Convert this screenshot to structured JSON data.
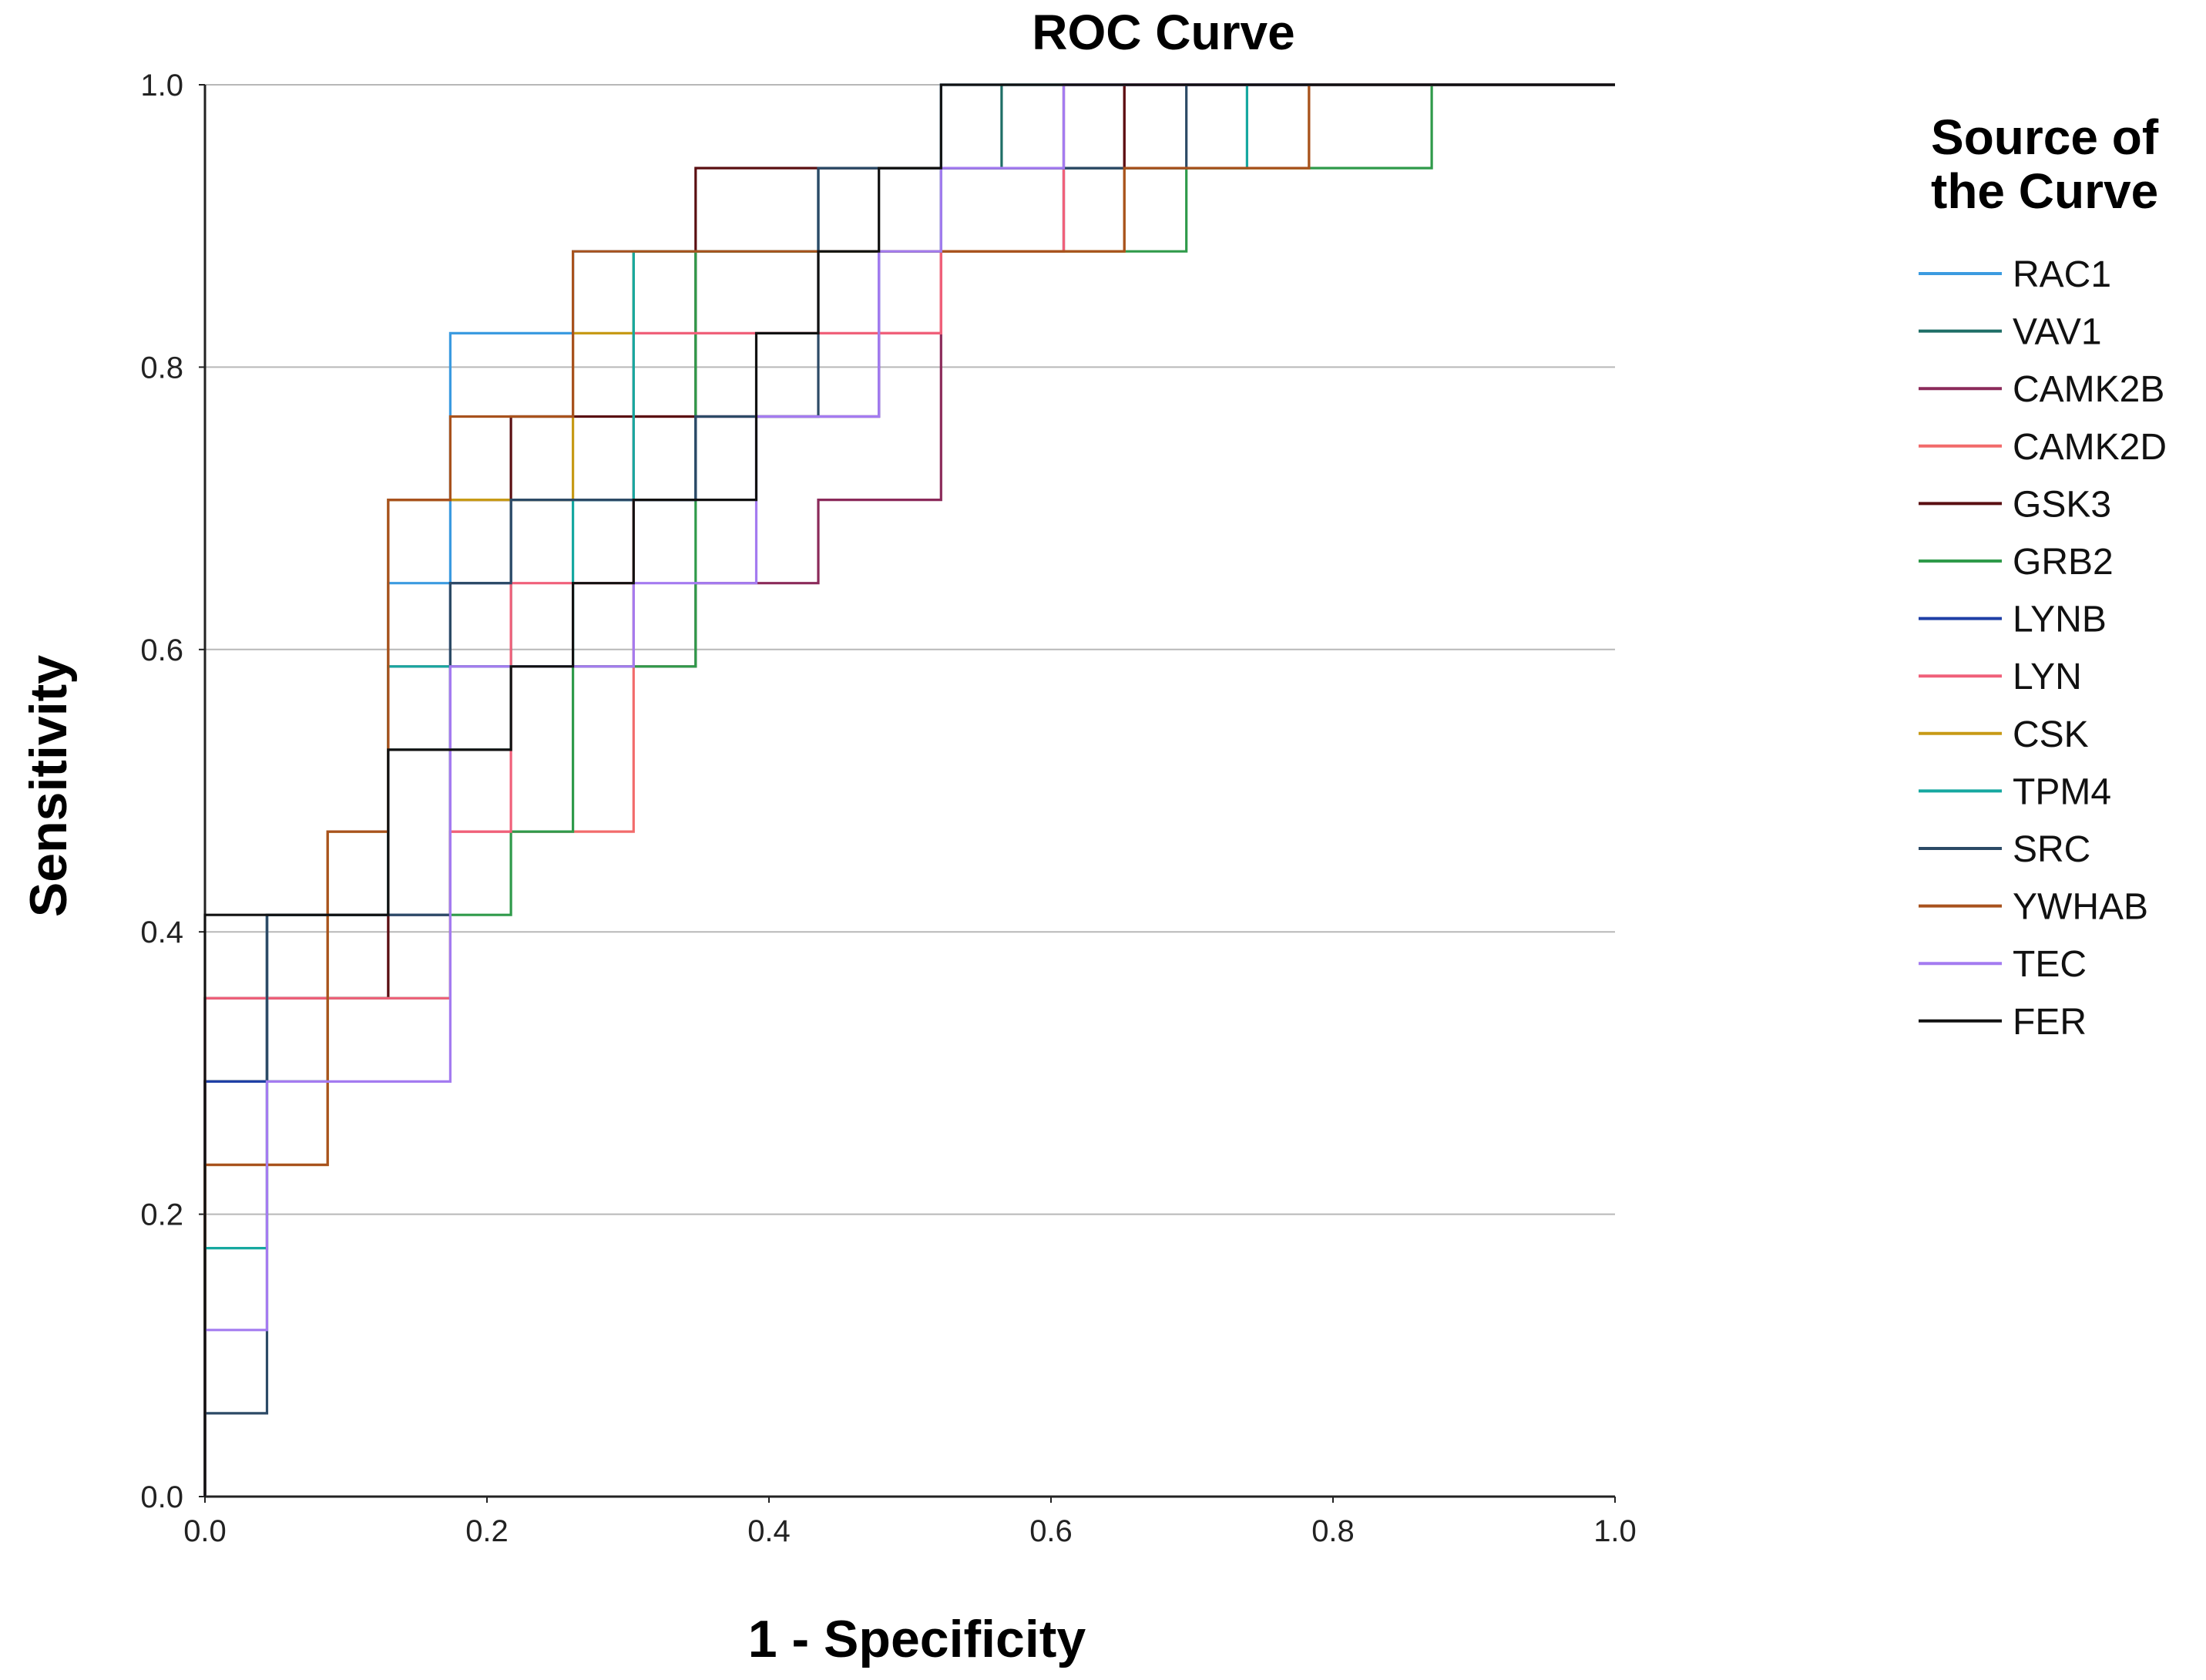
{
  "chart_data": {
    "type": "line",
    "title": "ROC Curve",
    "xlabel": "1 - Specificity",
    "ylabel": "Sensitivity",
    "xlim": [
      0,
      1
    ],
    "ylim": [
      0,
      1
    ],
    "xticks": [
      "0.0",
      "0.2",
      "0.4",
      "0.6",
      "0.8",
      "1.0"
    ],
    "yticks": [
      "0.0",
      "0.2",
      "0.4",
      "0.6",
      "0.8",
      "1.0"
    ],
    "grid": "horizontal",
    "legend": {
      "title_line1": "Source of",
      "title_line2": "the Curve",
      "position": "right"
    },
    "series": [
      {
        "name": "RAC1",
        "color": "#3b9be0",
        "x": [
          0,
          0,
          0.044,
          0.044,
          0.13,
          0.13,
          0.174,
          0.174,
          0.261,
          0.261,
          0.435,
          0.435,
          0.522,
          0.522,
          0.739,
          0.739,
          1.0
        ],
        "y": [
          0,
          0.294,
          0.294,
          0.412,
          0.412,
          0.647,
          0.647,
          0.824,
          0.824,
          0.882,
          0.882,
          0.941,
          0.941,
          1.0,
          1.0,
          1.0,
          1.0
        ]
      },
      {
        "name": "VAV1",
        "color": "#1e6e66",
        "x": [
          0,
          0,
          0.044,
          0.044,
          0.13,
          0.13,
          0.217,
          0.217,
          0.304,
          0.304,
          0.435,
          0.435,
          0.565,
          0.565,
          1.0
        ],
        "y": [
          0,
          0.294,
          0.294,
          0.412,
          0.412,
          0.529,
          0.529,
          0.706,
          0.706,
          0.882,
          0.882,
          0.941,
          0.941,
          1.0,
          1.0
        ]
      },
      {
        "name": "CAMK2B",
        "color": "#8b2a5a",
        "x": [
          0,
          0,
          0.044,
          0.044,
          0.13,
          0.13,
          0.261,
          0.261,
          0.348,
          0.348,
          0.435,
          0.435,
          0.522,
          0.522,
          0.652,
          0.652,
          1.0
        ],
        "y": [
          0,
          0.294,
          0.294,
          0.353,
          0.353,
          0.588,
          0.588,
          0.588,
          0.588,
          0.647,
          0.647,
          0.706,
          0.706,
          0.941,
          0.941,
          1.0,
          1.0
        ]
      },
      {
        "name": "CAMK2D",
        "color": "#f26b6b",
        "x": [
          0,
          0,
          0.044,
          0.044,
          0.174,
          0.174,
          0.304,
          0.304,
          0.478,
          0.478,
          0.522,
          0.522,
          0.609,
          0.609,
          0.652,
          0.652,
          1.0
        ],
        "y": [
          0,
          0.294,
          0.294,
          0.412,
          0.412,
          0.471,
          0.471,
          0.765,
          0.765,
          0.824,
          0.824,
          0.882,
          0.882,
          0.941,
          0.941,
          1.0,
          1.0
        ]
      },
      {
        "name": "GSK3",
        "color": "#5a0f12",
        "x": [
          0,
          0,
          0.044,
          0.044,
          0.13,
          0.13,
          0.217,
          0.217,
          0.348,
          0.348,
          0.522,
          0.522,
          0.652,
          0.652,
          1.0
        ],
        "y": [
          0,
          0.353,
          0.353,
          0.353,
          0.353,
          0.706,
          0.706,
          0.765,
          0.765,
          0.941,
          0.941,
          0.941,
          0.941,
          1.0,
          1.0
        ]
      },
      {
        "name": "GRB2",
        "color": "#2f9a4a",
        "x": [
          0,
          0,
          0.087,
          0.087,
          0.174,
          0.174,
          0.217,
          0.217,
          0.261,
          0.261,
          0.348,
          0.348,
          0.652,
          0.652,
          0.696,
          0.696,
          0.87,
          0.87,
          1.0
        ],
        "y": [
          0,
          0.294,
          0.294,
          0.353,
          0.353,
          0.412,
          0.412,
          0.471,
          0.471,
          0.588,
          0.588,
          0.882,
          0.882,
          0.882,
          0.882,
          0.941,
          0.941,
          1.0,
          1.0
        ]
      },
      {
        "name": "LYNB",
        "color": "#1f3fa6",
        "x": [
          0,
          0,
          0.044,
          0.044,
          0.174,
          0.174,
          0.217,
          0.217,
          0.348,
          0.348,
          0.478,
          0.478,
          0.609,
          0.609,
          1.0
        ],
        "y": [
          0,
          0.294,
          0.294,
          0.412,
          0.412,
          0.647,
          0.647,
          0.706,
          0.706,
          0.765,
          0.765,
          0.882,
          0.882,
          1.0,
          1.0
        ]
      },
      {
        "name": "LYN",
        "color": "#f0607a",
        "x": [
          0,
          0,
          0.044,
          0.044,
          0.174,
          0.174,
          0.217,
          0.217,
          0.304,
          0.304,
          0.435,
          0.435,
          0.522,
          0.522,
          0.609,
          0.609,
          1.0
        ],
        "y": [
          0,
          0.353,
          0.353,
          0.353,
          0.353,
          0.471,
          0.471,
          0.647,
          0.647,
          0.824,
          0.824,
          0.824,
          0.824,
          0.882,
          0.882,
          1.0,
          1.0
        ]
      },
      {
        "name": "CSK",
        "color": "#c79a16",
        "x": [
          0,
          0,
          0.087,
          0.087,
          0.13,
          0.13,
          0.261,
          0.261,
          0.304,
          0.304,
          0.522,
          0.522,
          0.652,
          0.652,
          0.783,
          0.783,
          1.0
        ],
        "y": [
          0,
          0.235,
          0.235,
          0.471,
          0.471,
          0.706,
          0.706,
          0.824,
          0.824,
          0.882,
          0.882,
          0.882,
          0.882,
          0.941,
          0.941,
          1.0,
          1.0
        ]
      },
      {
        "name": "TPM4",
        "color": "#16a8a0",
        "x": [
          0,
          0,
          0.044,
          0.044,
          0.13,
          0.13,
          0.261,
          0.261,
          0.304,
          0.304,
          0.522,
          0.522,
          0.739,
          0.739,
          1.0
        ],
        "y": [
          0,
          0.176,
          0.176,
          0.412,
          0.412,
          0.588,
          0.588,
          0.706,
          0.706,
          0.882,
          0.882,
          0.941,
          0.941,
          1.0,
          1.0
        ]
      },
      {
        "name": "SRC",
        "color": "#2c4a66",
        "x": [
          0,
          0,
          0.044,
          0.044,
          0.174,
          0.174,
          0.217,
          0.217,
          0.348,
          0.348,
          0.435,
          0.435,
          0.565,
          0.565,
          0.696,
          0.696,
          1.0
        ],
        "y": [
          0,
          0.059,
          0.059,
          0.412,
          0.412,
          0.647,
          0.647,
          0.706,
          0.706,
          0.765,
          0.765,
          0.941,
          0.941,
          0.941,
          0.941,
          1.0,
          1.0
        ]
      },
      {
        "name": "YWHAB",
        "color": "#a8521d",
        "x": [
          0,
          0,
          0.087,
          0.087,
          0.13,
          0.13,
          0.174,
          0.174,
          0.261,
          0.261,
          0.522,
          0.522,
          0.652,
          0.652,
          0.783,
          0.783,
          1.0
        ],
        "y": [
          0,
          0.235,
          0.235,
          0.471,
          0.471,
          0.706,
          0.706,
          0.765,
          0.765,
          0.882,
          0.882,
          0.882,
          0.882,
          0.941,
          0.941,
          1.0,
          1.0
        ]
      },
      {
        "name": "TEC",
        "color": "#a47bf0",
        "x": [
          0,
          0,
          0.044,
          0.044,
          0.174,
          0.174,
          0.304,
          0.304,
          0.391,
          0.391,
          0.478,
          0.478,
          0.522,
          0.522,
          0.609,
          0.609,
          1.0
        ],
        "y": [
          0,
          0.118,
          0.118,
          0.294,
          0.294,
          0.588,
          0.588,
          0.647,
          0.647,
          0.765,
          0.765,
          0.882,
          0.882,
          0.941,
          0.941,
          1.0,
          1.0
        ]
      },
      {
        "name": "FER",
        "color": "#111111",
        "x": [
          0,
          0,
          0.13,
          0.13,
          0.217,
          0.217,
          0.261,
          0.261,
          0.304,
          0.304,
          0.391,
          0.391,
          0.435,
          0.435,
          0.478,
          0.478,
          0.522,
          0.522,
          1.0
        ],
        "y": [
          0,
          0.412,
          0.412,
          0.529,
          0.529,
          0.588,
          0.588,
          0.647,
          0.647,
          0.706,
          0.706,
          0.824,
          0.824,
          0.882,
          0.882,
          0.941,
          0.941,
          1.0,
          1.0
        ]
      }
    ]
  }
}
